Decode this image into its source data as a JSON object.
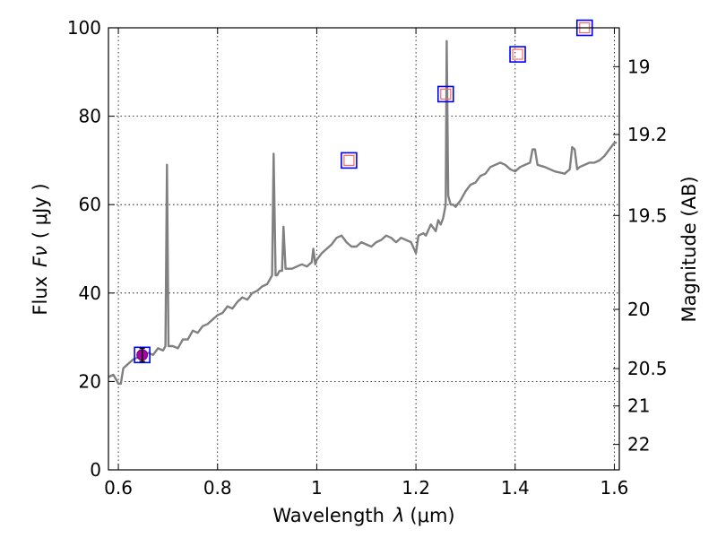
{
  "chart_data": {
    "type": "line",
    "xlabel_prefix": "Wavelength",
    "xlabel_symbol": "λ",
    "xlabel_unit": "(μm)",
    "ylabel_prefix": "Flux",
    "ylabel_symbol": "Fν",
    "ylabel_unit": "( μJy )",
    "y2label": "Magnitude (AB)",
    "xlim": [
      0.58,
      1.61
    ],
    "ylim": [
      0,
      100
    ],
    "grid": true,
    "xticks": [
      {
        "value": 0.6,
        "label": "0.6"
      },
      {
        "value": 0.8,
        "label": "0.8"
      },
      {
        "value": 1.0,
        "label": "1"
      },
      {
        "value": 1.2,
        "label": "1.2"
      },
      {
        "value": 1.4,
        "label": "1.4"
      },
      {
        "value": 1.6,
        "label": "1.6"
      }
    ],
    "yticks": [
      {
        "value": 0,
        "label": "0"
      },
      {
        "value": 20,
        "label": "20"
      },
      {
        "value": 40,
        "label": "40"
      },
      {
        "value": 60,
        "label": "60"
      },
      {
        "value": 80,
        "label": "80"
      },
      {
        "value": 100,
        "label": "100"
      }
    ],
    "y2ticks": [
      {
        "value": 19,
        "label": "19"
      },
      {
        "value": 19.2,
        "label": "19.2"
      },
      {
        "value": 19.5,
        "label": "19.5"
      },
      {
        "value": 20,
        "label": "20"
      },
      {
        "value": 20.5,
        "label": "20.5"
      },
      {
        "value": 21,
        "label": "21"
      },
      {
        "value": 22,
        "label": "22"
      }
    ],
    "series": [
      {
        "name": "spectrum",
        "color": "#808080",
        "points": [
          [
            0.58,
            21
          ],
          [
            0.59,
            21.5
          ],
          [
            0.595,
            20.5
          ],
          [
            0.6,
            19.5
          ],
          [
            0.605,
            19.5
          ],
          [
            0.61,
            23
          ],
          [
            0.62,
            24
          ],
          [
            0.63,
            25
          ],
          [
            0.64,
            25.5
          ],
          [
            0.65,
            25.8
          ],
          [
            0.66,
            26.5
          ],
          [
            0.67,
            26
          ],
          [
            0.68,
            27.5
          ],
          [
            0.69,
            27
          ],
          [
            0.695,
            28
          ],
          [
            0.698,
            69
          ],
          [
            0.701,
            28
          ],
          [
            0.71,
            28
          ],
          [
            0.72,
            27.5
          ],
          [
            0.73,
            29.5
          ],
          [
            0.74,
            29.5
          ],
          [
            0.75,
            31.5
          ],
          [
            0.76,
            31
          ],
          [
            0.77,
            32.5
          ],
          [
            0.78,
            33
          ],
          [
            0.79,
            34
          ],
          [
            0.8,
            35
          ],
          [
            0.81,
            35.5
          ],
          [
            0.82,
            37
          ],
          [
            0.83,
            36.5
          ],
          [
            0.84,
            38
          ],
          [
            0.85,
            39
          ],
          [
            0.86,
            38.5
          ],
          [
            0.87,
            40
          ],
          [
            0.88,
            40.5
          ],
          [
            0.89,
            41.5
          ],
          [
            0.9,
            42
          ],
          [
            0.905,
            43
          ],
          [
            0.91,
            44
          ],
          [
            0.913,
            71.5
          ],
          [
            0.917,
            44
          ],
          [
            0.92,
            44
          ],
          [
            0.925,
            45
          ],
          [
            0.93,
            45
          ],
          [
            0.933,
            55
          ],
          [
            0.937,
            45.5
          ],
          [
            0.95,
            45.5
          ],
          [
            0.96,
            46
          ],
          [
            0.97,
            46.5
          ],
          [
            0.98,
            46
          ],
          [
            0.99,
            47
          ],
          [
            0.993,
            50
          ],
          [
            0.997,
            46.5
          ],
          [
            1.0,
            47.5
          ],
          [
            1.01,
            49
          ],
          [
            1.02,
            50
          ],
          [
            1.03,
            51
          ],
          [
            1.04,
            52.5
          ],
          [
            1.05,
            53
          ],
          [
            1.06,
            51.5
          ],
          [
            1.07,
            50.5
          ],
          [
            1.08,
            50.5
          ],
          [
            1.09,
            51.5
          ],
          [
            1.1,
            51
          ],
          [
            1.11,
            50.5
          ],
          [
            1.12,
            51.5
          ],
          [
            1.13,
            52
          ],
          [
            1.14,
            53
          ],
          [
            1.15,
            52.5
          ],
          [
            1.16,
            51.5
          ],
          [
            1.17,
            52.5
          ],
          [
            1.18,
            52
          ],
          [
            1.19,
            51.5
          ],
          [
            1.2,
            49
          ],
          [
            1.205,
            53
          ],
          [
            1.215,
            53.5
          ],
          [
            1.22,
            53
          ],
          [
            1.23,
            55.5
          ],
          [
            1.24,
            54
          ],
          [
            1.245,
            56.5
          ],
          [
            1.25,
            55.5
          ],
          [
            1.255,
            57
          ],
          [
            1.26,
            60
          ],
          [
            1.262,
            97
          ],
          [
            1.265,
            62
          ],
          [
            1.27,
            60
          ],
          [
            1.275,
            60
          ],
          [
            1.28,
            59.5
          ],
          [
            1.29,
            61
          ],
          [
            1.3,
            63
          ],
          [
            1.31,
            64.5
          ],
          [
            1.32,
            65
          ],
          [
            1.33,
            66.5
          ],
          [
            1.34,
            67
          ],
          [
            1.35,
            68.5
          ],
          [
            1.36,
            69
          ],
          [
            1.37,
            69.5
          ],
          [
            1.38,
            69
          ],
          [
            1.39,
            68
          ],
          [
            1.4,
            67.5
          ],
          [
            1.41,
            68.5
          ],
          [
            1.42,
            69
          ],
          [
            1.43,
            69.5
          ],
          [
            1.435,
            72.5
          ],
          [
            1.44,
            72.5
          ],
          [
            1.445,
            69
          ],
          [
            1.46,
            68.5
          ],
          [
            1.48,
            67.5
          ],
          [
            1.5,
            67
          ],
          [
            1.51,
            68
          ],
          [
            1.515,
            73
          ],
          [
            1.52,
            72.5
          ],
          [
            1.525,
            68
          ],
          [
            1.53,
            68.5
          ],
          [
            1.54,
            69
          ],
          [
            1.55,
            69.5
          ],
          [
            1.56,
            69.5
          ],
          [
            1.57,
            70
          ],
          [
            1.58,
            71
          ],
          [
            1.59,
            72.5
          ],
          [
            1.6,
            74
          ],
          [
            1.605,
            74
          ]
        ]
      }
    ],
    "photometry": [
      {
        "x": 0.648,
        "y": 26,
        "type": "measured",
        "yerr": 1.5,
        "box_color": "#0000ff",
        "fill_color": "#aa00aa"
      },
      {
        "x": 1.065,
        "y": 70,
        "type": "model",
        "box_color": "#0000ff",
        "inner_color": "#ff6666"
      },
      {
        "x": 1.26,
        "y": 85,
        "type": "model",
        "box_color": "#0000ff",
        "inner_color": "#ff6666"
      },
      {
        "x": 1.405,
        "y": 94,
        "type": "model",
        "box_color": "#0000ff",
        "inner_color": "#ff6666"
      },
      {
        "x": 1.54,
        "y": 100,
        "type": "model",
        "box_color": "#0000ff",
        "inner_color": "#ff6666"
      }
    ]
  }
}
